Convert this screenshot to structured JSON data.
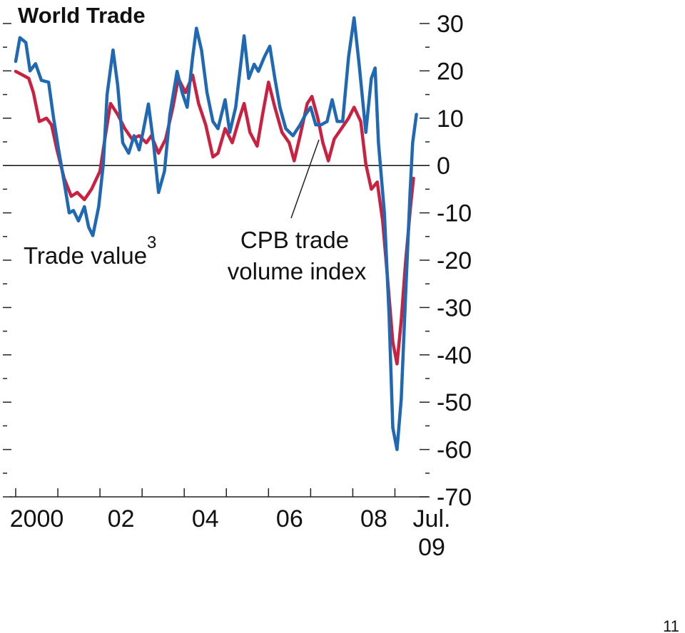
{
  "chart_data": {
    "type": "line",
    "title": "World Trade",
    "xlim": [
      2000,
      2009.5
    ],
    "ylim": [
      -70,
      30
    ],
    "yticks": [
      30,
      20,
      10,
      0,
      -10,
      -20,
      -30,
      -40,
      -50,
      -60,
      -70
    ],
    "yminorticks": [
      25,
      15,
      5,
      -5,
      -15,
      -25,
      -35,
      -45,
      -55,
      -65
    ],
    "xticks": [
      {
        "value": 2000.5,
        "label": "2000"
      },
      {
        "value": 2002.5,
        "label": "02"
      },
      {
        "value": 2004.5,
        "label": "04"
      },
      {
        "value": 2006.5,
        "label": "06"
      },
      {
        "value": 2008.5,
        "label": "08"
      },
      {
        "value": 2009.5,
        "label": "Jul. 09"
      }
    ],
    "xminorticks": [
      2000,
      2001,
      2002,
      2003,
      2004,
      2005,
      2006,
      2007,
      2008,
      2009
    ],
    "reference_line": 0,
    "series": [
      {
        "name": "Trade value",
        "color": "#1f68b3",
        "x": [
          2000.0,
          2000.1,
          2000.24,
          2000.34,
          2000.47,
          2000.61,
          2000.78,
          2000.9,
          2001.02,
          2001.15,
          2001.27,
          2001.37,
          2001.49,
          2001.63,
          2001.73,
          2001.83,
          2001.97,
          2002.08,
          2002.17,
          2002.31,
          2002.42,
          2002.54,
          2002.68,
          2002.81,
          2002.93,
          2003.02,
          2003.15,
          2003.27,
          2003.39,
          2003.53,
          2003.66,
          2003.83,
          2003.95,
          2004.07,
          2004.2,
          2004.29,
          2004.41,
          2004.54,
          2004.68,
          2004.8,
          2004.97,
          2005.08,
          2005.22,
          2005.32,
          2005.42,
          2005.53,
          2005.66,
          2005.76,
          2005.9,
          2006.03,
          2006.15,
          2006.27,
          2006.41,
          2006.58,
          2006.75,
          2006.88,
          2007.0,
          2007.12,
          2007.25,
          2007.39,
          2007.51,
          2007.63,
          2007.76,
          2007.9,
          2008.03,
          2008.15,
          2008.31,
          2008.44,
          2008.53,
          2008.61,
          2008.75,
          2008.86,
          2008.95,
          2009.05,
          2009.15,
          2009.25,
          2009.36,
          2009.42,
          2009.51
        ],
        "values": [
          22,
          27,
          26,
          20,
          21.5,
          18,
          17.6,
          10,
          3.3,
          -3.5,
          -10,
          -9.5,
          -11.7,
          -8.7,
          -13,
          -14.8,
          -8.7,
          0.3,
          15,
          24.4,
          17,
          4.8,
          2.6,
          6.3,
          3.3,
          7,
          13,
          4.8,
          -5.7,
          -1.2,
          10.8,
          19.9,
          15.4,
          12.3,
          22.9,
          29,
          24.4,
          15.4,
          9.3,
          7.8,
          13.9,
          7,
          12.3,
          19.9,
          27.4,
          18.4,
          21.4,
          19.9,
          22.9,
          25.2,
          18.4,
          12.3,
          7.8,
          6.3,
          8.6,
          10.8,
          12.3,
          8.6,
          8.6,
          9.3,
          13.9,
          9.3,
          9.3,
          22.9,
          31.2,
          21.4,
          7,
          18.4,
          20.6,
          4.8,
          -10,
          -31.3,
          -55.4,
          -60,
          -49.4,
          -28.2,
          -5.7,
          4.8,
          10.8
        ]
      },
      {
        "name": "CPB trade volume index",
        "color": "#c9213f",
        "x": [
          2000.0,
          2000.17,
          2000.31,
          2000.42,
          2000.56,
          2000.73,
          2000.85,
          2000.98,
          2001.15,
          2001.32,
          2001.46,
          2001.63,
          2001.8,
          2002.0,
          2002.14,
          2002.25,
          2002.42,
          2002.59,
          2002.76,
          2002.93,
          2003.1,
          2003.22,
          2003.39,
          2003.56,
          2003.73,
          2003.86,
          2004.03,
          2004.2,
          2004.34,
          2004.51,
          2004.68,
          2004.8,
          2004.97,
          2005.14,
          2005.31,
          2005.42,
          2005.56,
          2005.73,
          2005.86,
          2006.0,
          2006.15,
          2006.32,
          2006.49,
          2006.61,
          2006.75,
          2006.92,
          2007.03,
          2007.17,
          2007.29,
          2007.42,
          2007.56,
          2007.73,
          2007.9,
          2008.03,
          2008.19,
          2008.31,
          2008.44,
          2008.58,
          2008.71,
          2008.81,
          2008.95,
          2009.05,
          2009.15,
          2009.25,
          2009.37,
          2009.44
        ],
        "values": [
          19.9,
          19.1,
          18.4,
          15.4,
          9.3,
          10,
          8.6,
          3.3,
          -2.7,
          -6.5,
          -5.7,
          -7.2,
          -5,
          -1.2,
          7,
          13.1,
          10.8,
          7.8,
          5.6,
          6.3,
          4.8,
          6.3,
          2.6,
          5.6,
          12.3,
          18.4,
          15.4,
          19.1,
          13.1,
          8.6,
          1.8,
          2.6,
          7.8,
          4.8,
          10,
          13.1,
          7,
          4.1,
          10.8,
          17.6,
          12.3,
          7,
          4.8,
          1,
          6.3,
          13.1,
          14.6,
          10,
          4.8,
          1,
          5.6,
          7.8,
          10,
          12.3,
          9.3,
          0.3,
          -5,
          -3.5,
          -11.7,
          -22.3,
          -37.3,
          -41.9,
          -32.8,
          -20.8,
          -8.7,
          -2.7
        ]
      }
    ],
    "annotations": [
      {
        "text": "Trade value",
        "superscript": "3"
      },
      {
        "lines": [
          "CPB trade",
          "volume index"
        ]
      }
    ],
    "page_number": "11"
  }
}
